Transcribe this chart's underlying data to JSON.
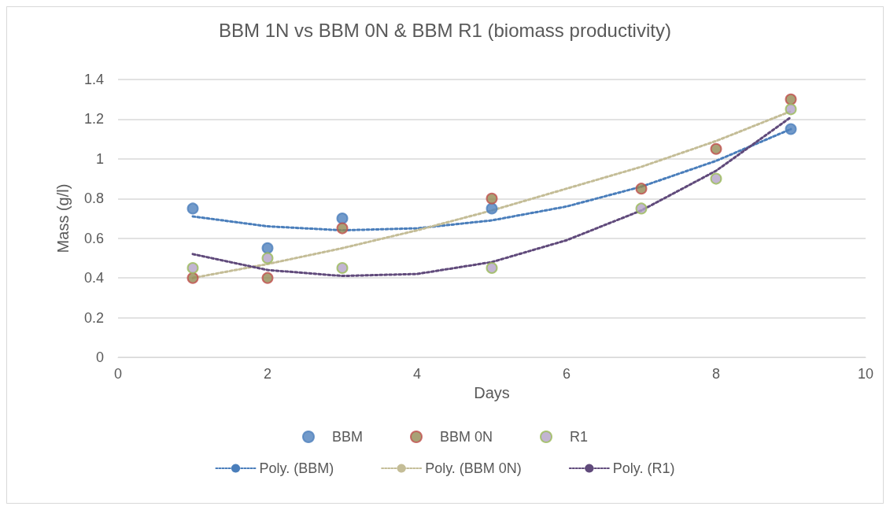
{
  "chart_data": {
    "type": "scatter",
    "title": "BBM 1N vs BBM 0N & BBM R1 (biomass productivity)",
    "xlabel": "Days",
    "ylabel": "Mass (g/l)",
    "x": [
      1,
      2,
      3,
      5,
      7,
      8,
      9
    ],
    "series": [
      {
        "name": "BBM",
        "color": "#4f81bd",
        "values": [
          0.75,
          0.55,
          0.7,
          0.75,
          null,
          null,
          1.15
        ],
        "marker": "circle"
      },
      {
        "name": "BBM 0N",
        "color": "#948a54",
        "values": [
          0.4,
          0.4,
          0.65,
          0.8,
          0.85,
          1.05,
          1.3
        ],
        "marker": "circle"
      },
      {
        "name": "R1",
        "color": "#b3a2c7",
        "values": [
          0.45,
          0.5,
          0.45,
          0.45,
          0.75,
          0.9,
          1.25
        ],
        "marker": "circle"
      },
      {
        "name": "Poly. (BBM)",
        "type": "line",
        "color": "#4a7ebb",
        "line_style": "dotted",
        "marker": "none",
        "x": [
          1,
          2,
          3,
          4,
          5,
          6,
          7,
          8,
          9
        ],
        "values": [
          0.71,
          0.66,
          0.64,
          0.65,
          0.69,
          0.76,
          0.86,
          0.99,
          1.15
        ]
      },
      {
        "name": "Poly. (BBM 0N)",
        "type": "line",
        "color": "#c4bd97",
        "line_style": "dotted",
        "marker": "none",
        "x": [
          1,
          2,
          3,
          4,
          5,
          6,
          7,
          8,
          9
        ],
        "values": [
          0.4,
          0.47,
          0.55,
          0.64,
          0.74,
          0.85,
          0.96,
          1.09,
          1.24
        ]
      },
      {
        "name": "Poly. (R1)",
        "type": "line",
        "color": "#604a7b",
        "line_style": "dotted",
        "marker": "none",
        "x": [
          1,
          2,
          3,
          4,
          5,
          6,
          7,
          8,
          9
        ],
        "values": [
          0.52,
          0.44,
          0.41,
          0.42,
          0.48,
          0.59,
          0.74,
          0.94,
          1.21
        ]
      }
    ],
    "xlim": [
      0,
      10
    ],
    "xticks": [
      0,
      2,
      4,
      6,
      8,
      10
    ],
    "ylim": [
      0,
      1.4
    ],
    "yticks": [
      0,
      0.2,
      0.4,
      0.6,
      0.8,
      1,
      1.2,
      1.4
    ],
    "grid": "y",
    "legend": "bottom"
  }
}
